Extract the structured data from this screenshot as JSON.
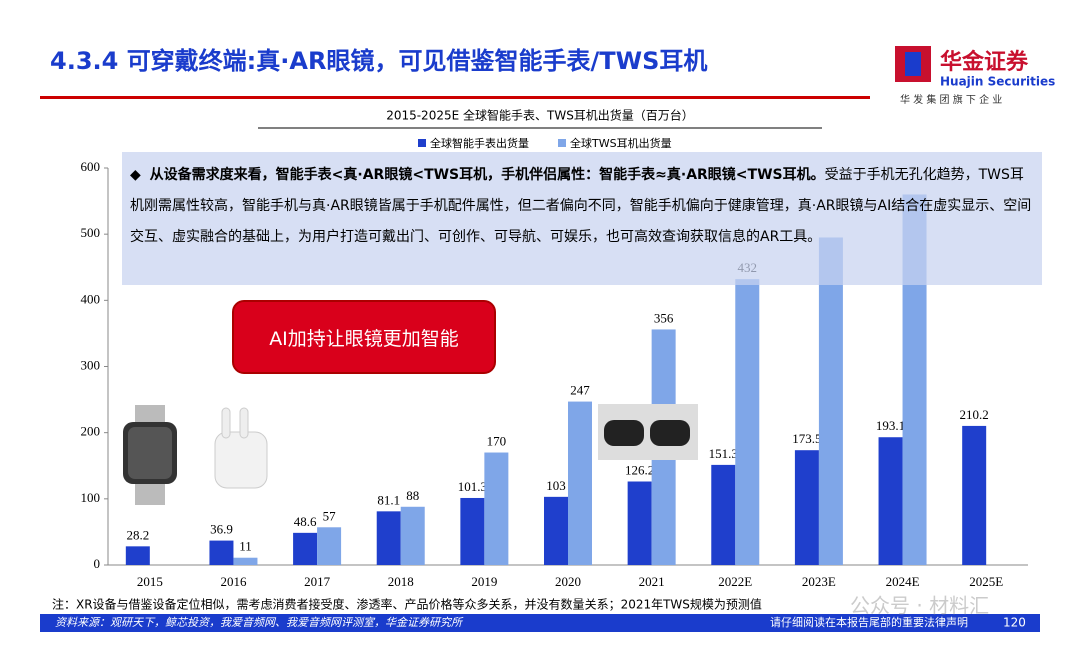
{
  "header": {
    "title": "4.3.4 可穿戴终端:真·AR眼镜，可见借鉴智能手表/TWS耳机",
    "logo_name": "华金证券",
    "logo_en": "Huajin Securities",
    "logo_tag": "华 发 集 团 旗 下 企 业"
  },
  "callout": {
    "lead": "从设备需求度来看，智能手表<真·AR眼镜<TWS耳机，手机伴侣属性：智能手表≈真·AR眼镜<TWS耳机。",
    "body": "受益于手机无孔化趋势，TWS耳机刚需属性较高，智能手机与真·AR眼镜皆属于手机配件属性，但二者偏向不同，智能手机偏向于健康管理，真·AR眼镜与AI结合在虚实显示、空间交互、虚实融合的基础上，为用户打造可戴出门、可创作、可导航、可娱乐，也可高效查询获取信息的AR工具。"
  },
  "highlight": "AI加持让眼镜更加智能",
  "chart_data": {
    "type": "bar",
    "title": "2015-2025E 全球智能手表、TWS耳机出货量（百万台）",
    "categories": [
      "2015",
      "2016",
      "2017",
      "2018",
      "2019",
      "2020",
      "2021",
      "2022E",
      "2023E",
      "2024E",
      "2025E"
    ],
    "series": [
      {
        "name": "全球智能手表出货量",
        "color": "#1f3fcc",
        "values": [
          28.2,
          36.9,
          48.6,
          81.1,
          101.3,
          103,
          126.2,
          151.3,
          173.5,
          193.1,
          210.2
        ]
      },
      {
        "name": "全球TWS耳机出货量",
        "color": "#7fa6e8",
        "values": [
          null,
          11,
          57,
          88,
          170,
          247,
          356,
          432,
          495,
          560,
          null
        ],
        "value_labels": [
          null,
          "11",
          "57",
          "88",
          "170",
          "247",
          "356",
          "432",
          null,
          null,
          null
        ]
      }
    ],
    "ylim": [
      0,
      600
    ],
    "yticks": [
      0,
      100,
      200,
      300,
      400,
      500,
      600
    ],
    "grid": false
  },
  "note": "注：XR设备与借鉴设备定位相似，需考虑消费者接受度、渗透率、产品价格等众多关系，并没有数量关系；2021年TWS规模为预测值",
  "footer": {
    "source": "资料来源：观研天下，鲸芯投资，我爱音频网、我爱音频网评测室，华金证券研究所",
    "disclaimer": "请仔细阅读在本报告尾部的重要法律声明",
    "page": "120"
  },
  "watermark": "公众号 · 材料汇"
}
